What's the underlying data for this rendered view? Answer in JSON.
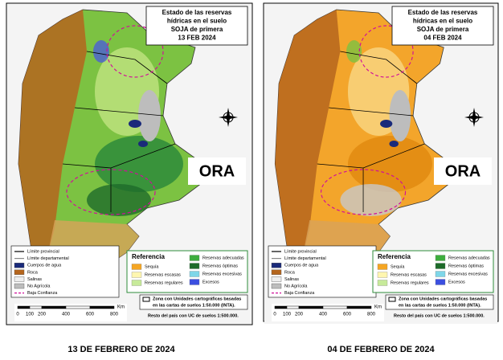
{
  "panels": [
    {
      "title": [
        "Estado de las reservas",
        "hídricas en el suelo",
        "SOJA de primera",
        "13 FEB 2024"
      ],
      "caption": "13 DE FEBRERO DE 2024",
      "logo": "ORA",
      "legend_items": [
        "Límite provincial",
        "Límite departamental",
        "Cuerpos de agua",
        "Roca",
        "Salinas",
        "No Agrícola",
        "Baja Confianza"
      ],
      "reference_title": "Referencia",
      "reference_items": [
        "Sequía",
        "Reservas escasas",
        "Reservas regulares",
        "Reservas adecuadas",
        "Reservas óptimas",
        "Reservas excesivas",
        "Excesos"
      ],
      "note": [
        "Zona con Unidades cartográficas basadas",
        "en las cartas de suelos 1:50.000 (INTA).",
        "Resto del país con UC de suelos 1:500.000."
      ],
      "scale_unit": "Km",
      "scale_labels": [
        "0",
        "100",
        "200",
        "400",
        "600",
        "800"
      ]
    },
    {
      "title": [
        "Estado de las reservas",
        "hídricas en el suelo",
        "SOJA de primera",
        "04 FEB 2024"
      ],
      "caption": "04 DE FEBRERO DE 2024",
      "logo": "ORA",
      "legend_items": [
        "Límite provincial",
        "Límite departamental",
        "Cuerpos de agua",
        "Roca",
        "Salinas",
        "No Agrícola",
        "Baja Confianza"
      ],
      "reference_title": "Referencia",
      "reference_items": [
        "Sequía",
        "Reservas escasas",
        "Reservas regulares",
        "Reservas adecuadas",
        "Reservas óptimas",
        "Reservas excesivas",
        "Excesos"
      ],
      "note": [
        "Zona con Unidades cartográficas basadas",
        "en las cartas de suelos 1:50.000 (INTA).",
        "Resto del país con UC de suelos 1:500.000."
      ],
      "scale_unit": "Km",
      "scale_labels": [
        "0",
        "100",
        "200",
        "400",
        "600",
        "800"
      ]
    }
  ]
}
